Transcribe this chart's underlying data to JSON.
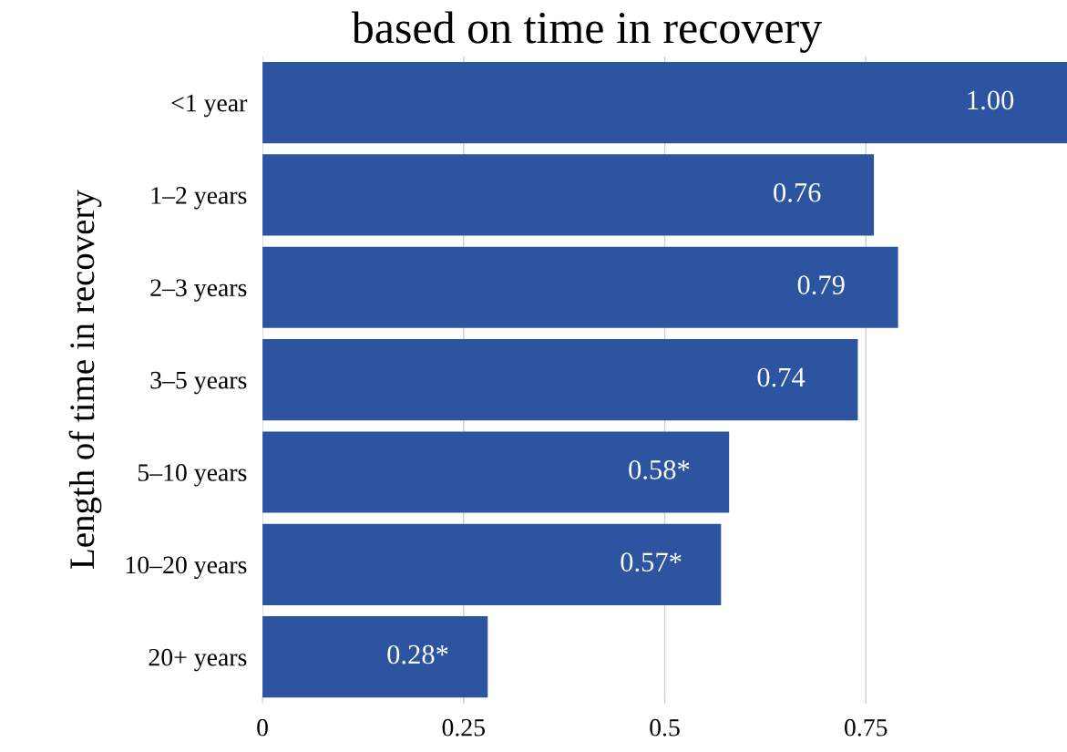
{
  "chart_data": {
    "type": "bar",
    "orientation": "horizontal",
    "title": "based on time in recovery",
    "ylabel": "Length of time in recovery",
    "categories": [
      "<1 year",
      "1–2 years",
      "2–3 years",
      "3–5 years",
      "5–10 years",
      "10–20 years",
      "20+ years"
    ],
    "values": [
      1.0,
      0.76,
      0.79,
      0.74,
      0.58,
      0.57,
      0.28
    ],
    "value_labels": [
      "1.00",
      "0.76",
      "0.79",
      "0.74",
      "0.58*",
      "0.57*",
      "0.28*"
    ],
    "color": "#2c54a0",
    "xlim": [
      0,
      1
    ],
    "xticks": [
      0,
      0.25,
      0.5,
      0.75
    ],
    "grid": "x",
    "legend": false
  }
}
